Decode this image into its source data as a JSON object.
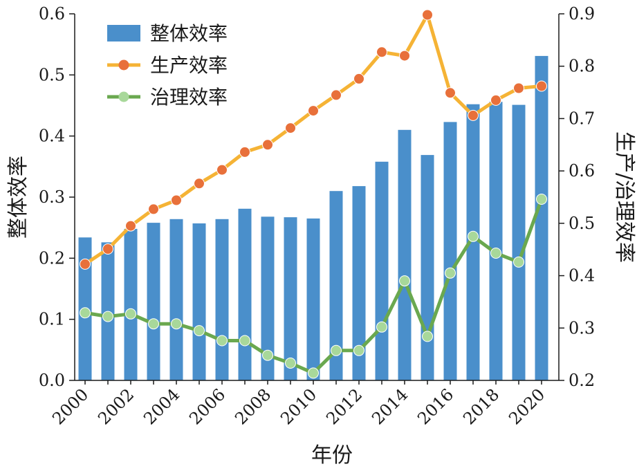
{
  "chart_data": {
    "type": "bar+line",
    "title": "",
    "xlabel": "年份",
    "ylabel_left": "整体效率",
    "ylabel_right": "生产/治理效率",
    "ylim_left": [
      0,
      0.6
    ],
    "ylim_right": [
      0.2,
      0.9
    ],
    "yticks_left": [
      "0.0",
      "0.1",
      "0.2",
      "0.3",
      "0.4",
      "0.5",
      "0.6"
    ],
    "yticks_right": [
      "0.2",
      "0.3",
      "0.4",
      "0.5",
      "0.6",
      "0.7",
      "0.8",
      "0.9"
    ],
    "xticks": [
      "2000",
      "2002",
      "2004",
      "2006",
      "2008",
      "2010",
      "2012",
      "2014",
      "2016",
      "2018",
      "2020"
    ],
    "grid": false,
    "legend_position": "top-left",
    "x": [
      2000,
      2001,
      2002,
      2003,
      2004,
      2005,
      2006,
      2007,
      2008,
      2009,
      2010,
      2011,
      2012,
      2013,
      2014,
      2015,
      2016,
      2017,
      2018,
      2019,
      2020
    ],
    "series": [
      {
        "name": "整体效率",
        "kind": "bar",
        "axis": "left",
        "color": "#4a8fcb",
        "values": [
          0.234,
          0.226,
          0.248,
          0.258,
          0.264,
          0.257,
          0.264,
          0.281,
          0.268,
          0.267,
          0.265,
          0.31,
          0.318,
          0.358,
          0.41,
          0.369,
          0.423,
          0.452,
          0.456,
          0.451,
          0.531
        ]
      },
      {
        "name": "生产效率",
        "kind": "line",
        "axis": "right",
        "color": "#f5b335",
        "marker_color": "#e8703a",
        "values": [
          0.422,
          0.451,
          0.495,
          0.527,
          0.544,
          0.576,
          0.602,
          0.636,
          0.65,
          0.682,
          0.715,
          0.745,
          0.776,
          0.827,
          0.82,
          0.898,
          0.749,
          0.706,
          0.735,
          0.758,
          0.762
        ]
      },
      {
        "name": "治理效率",
        "kind": "line",
        "axis": "right",
        "color": "#6aa84f",
        "marker_color": "#a8d89a",
        "values": [
          0.329,
          0.322,
          0.327,
          0.308,
          0.308,
          0.295,
          0.276,
          0.276,
          0.248,
          0.233,
          0.214,
          0.257,
          0.257,
          0.302,
          0.39,
          0.284,
          0.405,
          0.475,
          0.443,
          0.426,
          0.546
        ]
      }
    ]
  }
}
